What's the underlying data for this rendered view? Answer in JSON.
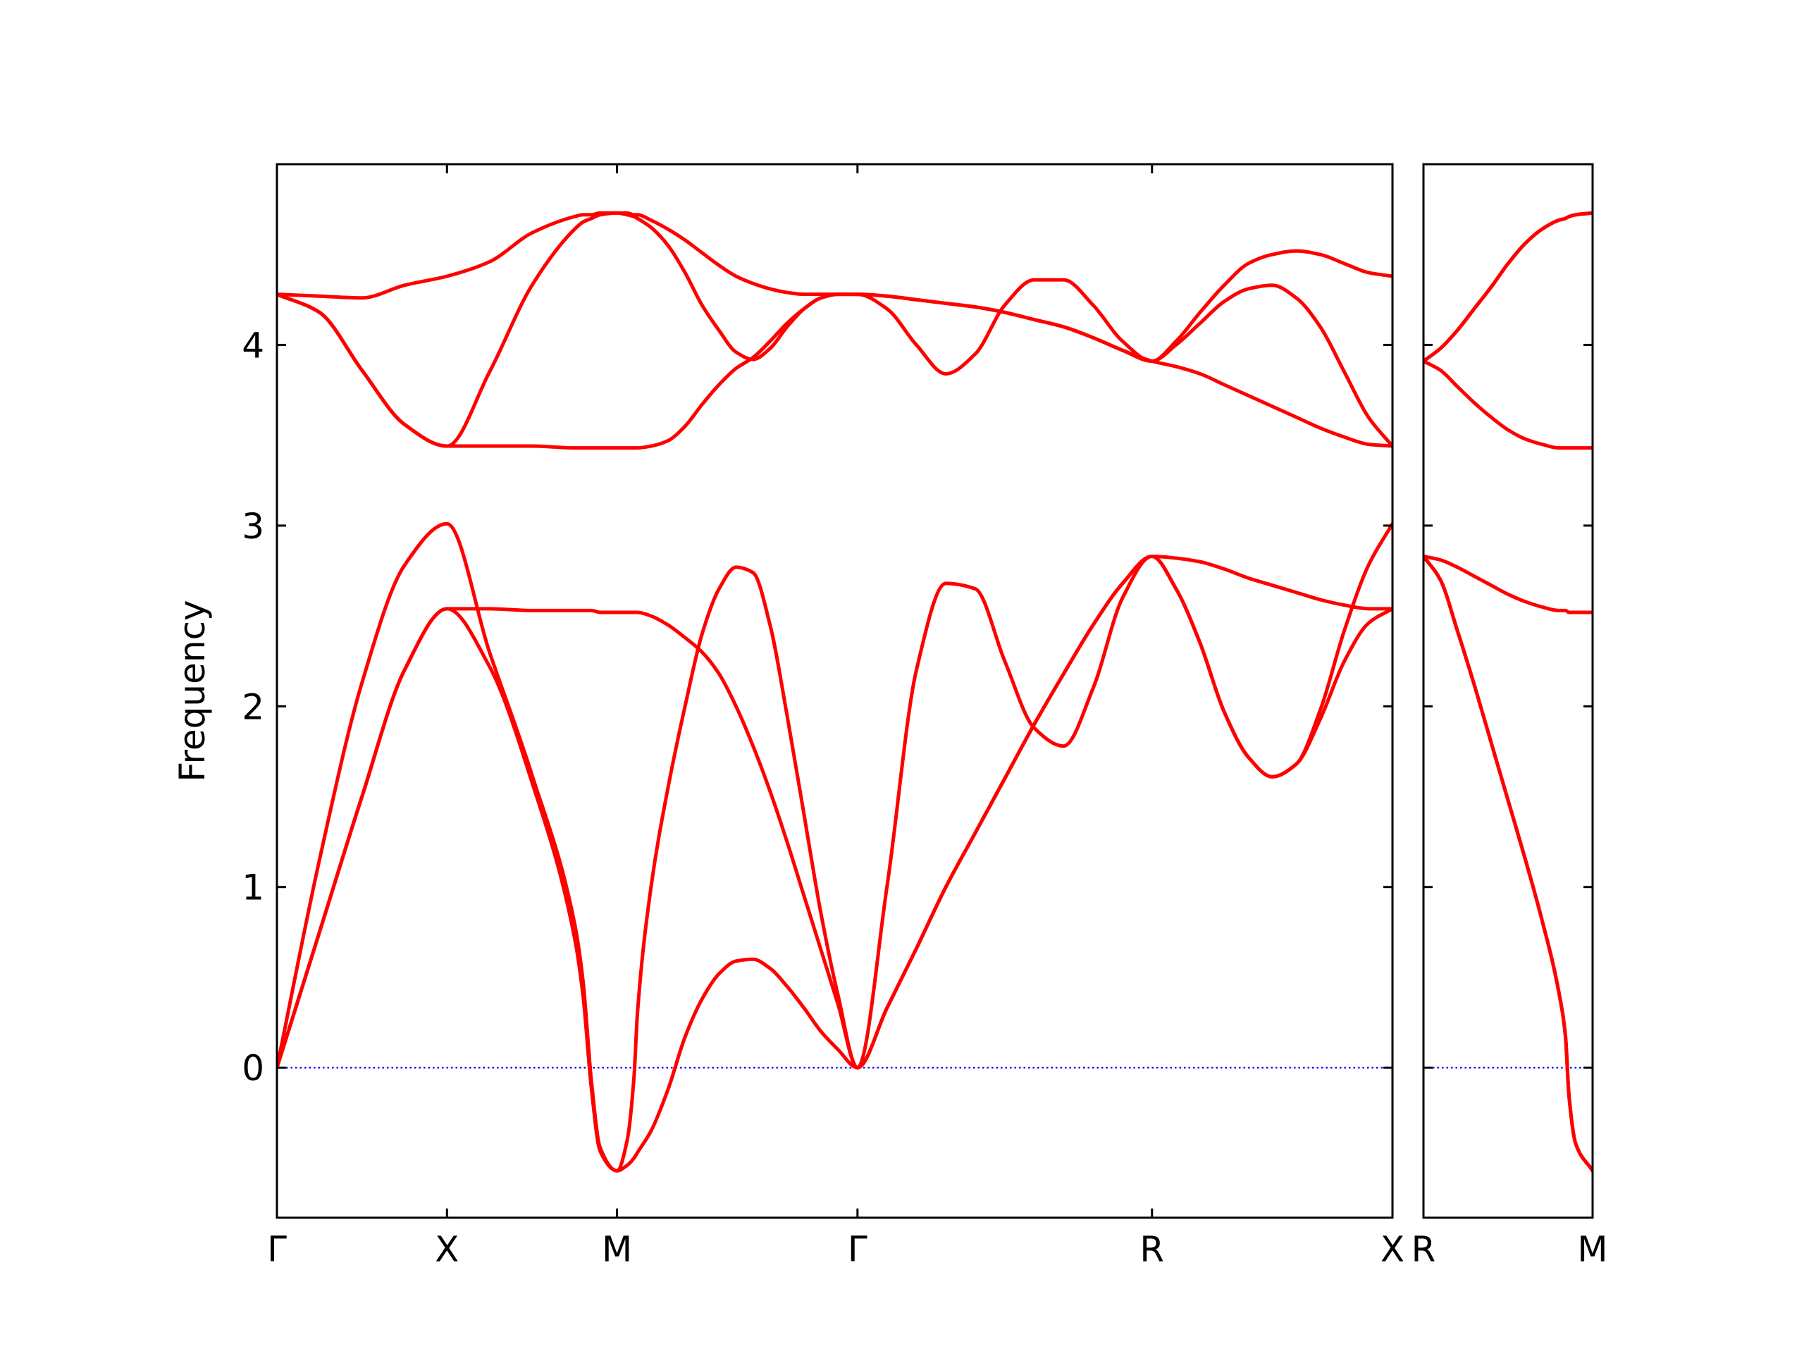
{
  "chart_data": [
    {
      "type": "line",
      "ylabel": "Frequency",
      "xlim": [
        0,
        3.2802
      ],
      "ylim": [
        -0.83,
        5.0
      ],
      "xticks": [
        {
          "value": 0,
          "label": "Γ"
        },
        {
          "value": 0.5,
          "label": "X"
        },
        {
          "value": 1.0,
          "label": "M"
        },
        {
          "value": 1.7071,
          "label": "Γ"
        },
        {
          "value": 2.5731,
          "label": "R"
        },
        {
          "value": 3.2802,
          "label": "X"
        }
      ],
      "yticks": [
        0,
        1,
        2,
        3,
        4
      ],
      "show_ytick_labels": true,
      "hlines": [
        {
          "y": 0,
          "color": "#0000ff",
          "style": "dotted"
        }
      ],
      "x": [
        0,
        0.125,
        0.25,
        0.375,
        0.5,
        0.625,
        0.75,
        0.875,
        0.9,
        0.925,
        0.95,
        1.0,
        1.03,
        1.05,
        1.06,
        1.1,
        1.15,
        1.2,
        1.25,
        1.3,
        1.35,
        1.4,
        1.45,
        1.5,
        1.55,
        1.6,
        1.65,
        1.7071,
        1.7937,
        1.8803,
        1.9669,
        2.0535,
        2.1401,
        2.2267,
        2.3133,
        2.3999,
        2.4865,
        2.5731,
        2.6438,
        2.7145,
        2.7852,
        2.8559,
        2.9266,
        2.9973,
        3.068,
        3.1388,
        3.2095,
        3.2802
      ],
      "series": [
        {
          "color": "#ff0000",
          "values": [
            0,
            0.75,
            1.5,
            2.2,
            2.54,
            2.54,
            2.53,
            2.53,
            2.53,
            2.53,
            2.52,
            2.52,
            2.52,
            2.52,
            2.52,
            2.5,
            2.45,
            2.38,
            2.3,
            2.18,
            2.0,
            1.78,
            1.53,
            1.25,
            0.95,
            0.65,
            0.35,
            0,
            0.33,
            0.66,
            1.0,
            1.3,
            1.6,
            1.9,
            2.18,
            2.45,
            2.68,
            2.83,
            2.82,
            2.8,
            2.76,
            2.71,
            2.67,
            2.63,
            2.59,
            2.56,
            2.54,
            2.54
          ]
        },
        {
          "color": "#ff0000",
          "values": [
            0,
            0.75,
            1.5,
            2.2,
            2.54,
            2.22,
            1.58,
            0.72,
            0.4,
            -0.12,
            -0.46,
            -0.57,
            -0.54,
            -0.5,
            -0.47,
            -0.35,
            -0.12,
            0.17,
            0.38,
            0.52,
            0.59,
            0.6,
            0.55,
            0.45,
            0.33,
            0.2,
            0.1,
            0,
            0.33,
            0.66,
            1.0,
            1.3,
            1.6,
            1.9,
            2.18,
            2.45,
            2.68,
            2.83,
            2.65,
            2.35,
            1.97,
            1.72,
            1.61,
            1.68,
            1.93,
            2.25,
            2.46,
            2.54
          ]
        },
        {
          "color": "#ff0000",
          "values": [
            0,
            1.15,
            2.13,
            2.78,
            3.01,
            2.3,
            1.62,
            0.8,
            0.48,
            -0.08,
            -0.44,
            -0.57,
            -0.4,
            -0.05,
            0.3,
            1.0,
            1.55,
            2.0,
            2.4,
            2.65,
            2.77,
            2.74,
            2.45,
            1.95,
            1.4,
            0.85,
            0.4,
            0,
            1.0,
            2.2,
            2.68,
            2.65,
            2.25,
            1.88,
            1.78,
            2.1,
            2.6,
            2.83,
            2.65,
            2.35,
            1.97,
            1.72,
            1.61,
            1.68,
            1.98,
            2.42,
            2.78,
            3.01
          ]
        },
        {
          "color": "#ff0000",
          "values": [
            4.28,
            4.18,
            3.86,
            3.56,
            3.44,
            3.44,
            3.44,
            3.43,
            3.43,
            3.43,
            3.43,
            3.43,
            3.43,
            3.43,
            3.43,
            3.44,
            3.47,
            3.55,
            3.67,
            3.78,
            3.87,
            3.93,
            4.02,
            4.12,
            4.2,
            4.26,
            4.28,
            4.28,
            4.27,
            4.25,
            4.23,
            4.21,
            4.18,
            4.14,
            4.1,
            4.04,
            3.97,
            3.91,
            3.88,
            3.84,
            3.78,
            3.72,
            3.66,
            3.6,
            3.54,
            3.49,
            3.45,
            3.44
          ]
        },
        {
          "color": "#ff0000",
          "values": [
            4.28,
            4.18,
            3.86,
            3.56,
            3.44,
            3.85,
            4.33,
            4.64,
            4.68,
            4.7,
            4.72,
            4.73,
            4.72,
            4.71,
            4.7,
            4.65,
            4.55,
            4.4,
            4.22,
            4.08,
            3.96,
            3.92,
            3.98,
            4.1,
            4.2,
            4.26,
            4.28,
            4.28,
            4.27,
            4.25,
            4.23,
            4.21,
            4.18,
            4.14,
            4.1,
            4.04,
            3.97,
            3.91,
            4.0,
            4.12,
            4.24,
            4.31,
            4.33,
            4.26,
            4.1,
            3.85,
            3.6,
            3.44
          ]
        },
        {
          "color": "#ff0000",
          "values": [
            4.28,
            4.27,
            4.26,
            4.33,
            4.38,
            4.46,
            4.62,
            4.71,
            4.72,
            4.72,
            4.73,
            4.73,
            4.73,
            4.72,
            4.72,
            4.69,
            4.64,
            4.58,
            4.51,
            4.44,
            4.38,
            4.34,
            4.31,
            4.29,
            4.28,
            4.28,
            4.28,
            4.28,
            4.2,
            4.0,
            3.84,
            3.95,
            4.22,
            4.36,
            4.36,
            4.22,
            4.02,
            3.91,
            4.02,
            4.18,
            4.33,
            4.45,
            4.5,
            4.52,
            4.5,
            4.45,
            4.4,
            4.38
          ]
        }
      ]
    },
    {
      "type": "line",
      "xlim": [
        0,
        0.5
      ],
      "ylim": [
        -0.83,
        5.0
      ],
      "xticks": [
        {
          "value": 0,
          "label": "R"
        },
        {
          "value": 0.5,
          "label": "M"
        }
      ],
      "yticks": [
        0,
        1,
        2,
        3,
        4
      ],
      "show_ytick_labels": false,
      "hlines": [
        {
          "y": 0,
          "color": "#0000ff",
          "style": "dotted"
        }
      ],
      "x": [
        0,
        0.05,
        0.1,
        0.15,
        0.2,
        0.25,
        0.3,
        0.35,
        0.4,
        0.42,
        0.43,
        0.45,
        0.5
      ],
      "series": [
        {
          "color": "#ff0000",
          "values": [
            2.83,
            2.81,
            2.77,
            2.72,
            2.67,
            2.62,
            2.58,
            2.55,
            2.53,
            2.53,
            2.52,
            2.52,
            2.52
          ]
        },
        {
          "color": "#ff0000",
          "values": [
            2.83,
            2.7,
            2.42,
            2.12,
            1.8,
            1.48,
            1.16,
            0.82,
            0.42,
            0.17,
            -0.15,
            -0.42,
            -0.57
          ]
        },
        {
          "color": "#ff0000",
          "values": [
            2.83,
            2.7,
            2.42,
            2.12,
            1.8,
            1.48,
            1.16,
            0.82,
            0.42,
            0.17,
            -0.15,
            -0.42,
            -0.57
          ]
        },
        {
          "color": "#ff0000",
          "values": [
            3.91,
            3.86,
            3.77,
            3.68,
            3.6,
            3.53,
            3.48,
            3.45,
            3.43,
            3.43,
            3.43,
            3.43,
            3.43
          ]
        },
        {
          "color": "#ff0000",
          "values": [
            3.91,
            3.98,
            4.08,
            4.2,
            4.32,
            4.45,
            4.56,
            4.64,
            4.69,
            4.7,
            4.71,
            4.72,
            4.73
          ]
        },
        {
          "color": "#ff0000",
          "values": [
            3.91,
            3.98,
            4.08,
            4.2,
            4.32,
            4.45,
            4.56,
            4.64,
            4.69,
            4.7,
            4.71,
            4.72,
            4.73
          ]
        }
      ]
    }
  ]
}
